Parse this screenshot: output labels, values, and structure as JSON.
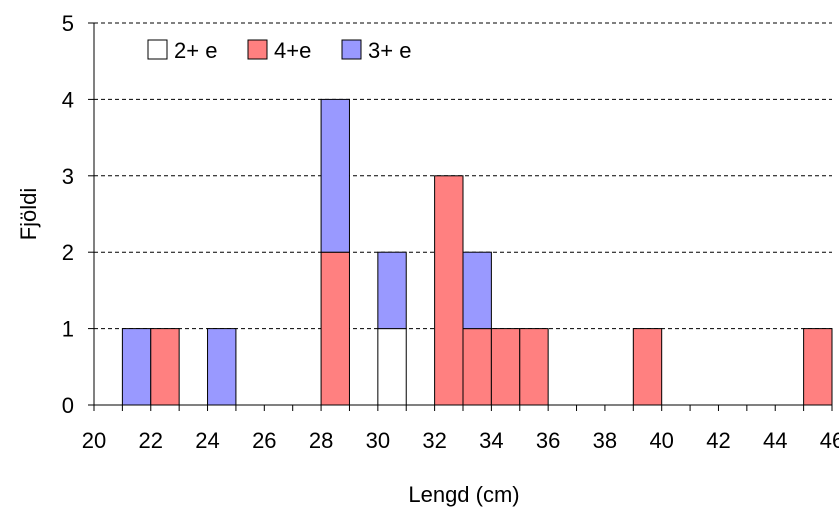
{
  "chart_data": {
    "type": "bar",
    "stacked": true,
    "xlabel": "Lengd (cm)",
    "ylabel": "Fjöldi",
    "ylim": [
      0,
      5
    ],
    "xlim": [
      20,
      46
    ],
    "x_ticks": [
      20,
      22,
      24,
      26,
      28,
      30,
      32,
      34,
      36,
      38,
      40,
      42,
      44,
      46
    ],
    "y_ticks": [
      0,
      1,
      2,
      3,
      4,
      5
    ],
    "grid": "horizontal dashed",
    "legend_position": "top-left",
    "categories": [
      "21-22",
      "22-23",
      "24-25",
      "28-29",
      "30-31",
      "32-33",
      "33-34",
      "34-35",
      "35-36",
      "39-40",
      "45-46"
    ],
    "bins": [
      [
        21,
        22
      ],
      [
        22,
        23
      ],
      [
        24,
        25
      ],
      [
        28,
        29
      ],
      [
        30,
        31
      ],
      [
        32,
        33
      ],
      [
        33,
        34
      ],
      [
        34,
        35
      ],
      [
        35,
        36
      ],
      [
        39,
        40
      ],
      [
        45,
        46
      ]
    ],
    "series": [
      {
        "name": "2+ e",
        "color": "#ffffff",
        "values": [
          0,
          0,
          0,
          0,
          1,
          0,
          0,
          0,
          0,
          0,
          0
        ]
      },
      {
        "name": "4+e",
        "color": "#ff8080",
        "values": [
          0,
          1,
          0,
          2,
          0,
          3,
          1,
          1,
          1,
          1,
          1
        ]
      },
      {
        "name": "3+ e",
        "color": "#9999ff",
        "values": [
          1,
          0,
          1,
          2,
          1,
          0,
          1,
          0,
          0,
          0,
          0
        ]
      }
    ]
  }
}
